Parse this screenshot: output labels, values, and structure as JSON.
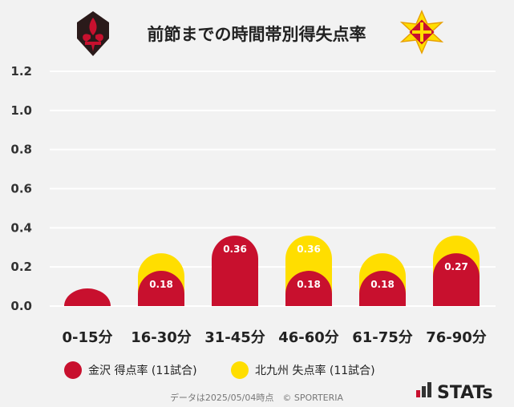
{
  "chart_data": {
    "type": "bar",
    "title": "前節までの時間帯別得失点率",
    "categories": [
      "0-15分",
      "16-30分",
      "31-45分",
      "46-60分",
      "61-75分",
      "76-90分"
    ],
    "series": [
      {
        "name": "北九州 失点率 (11試合)",
        "values": [
          0,
          0.27,
          0,
          0.36,
          0.27,
          0.36
        ],
        "labels": [
          "",
          "",
          "",
          "0.36",
          "",
          ""
        ],
        "color": "#FFDE00"
      },
      {
        "name": "金沢 得点率 (11試合)",
        "values": [
          0.09,
          0.18,
          0.36,
          0.18,
          0.18,
          0.27
        ],
        "labels": [
          "",
          "0.18",
          "0.36",
          "0.18",
          "0.18",
          "0.27"
        ],
        "color": "#C8102E"
      }
    ],
    "yticks": [
      "0.0",
      "0.2",
      "0.4",
      "0.6",
      "0.8",
      "1.0",
      "1.2"
    ],
    "ylim": [
      0,
      1.2
    ],
    "legend_position": "bottom",
    "grid": true
  },
  "footer": {
    "note": "データは2025/05/04時点　© SPORTERIA",
    "brand": "STATs"
  },
  "colors": {
    "background": "#f2f2f2",
    "grid": "#ffffff",
    "home": "#C8102E",
    "away": "#FFDE00"
  },
  "icons": {
    "home_logo": "fleur-de-lis-emblem-icon",
    "away_logo": "star-emblem-icon",
    "brand_logo": "stats-bars-icon"
  }
}
